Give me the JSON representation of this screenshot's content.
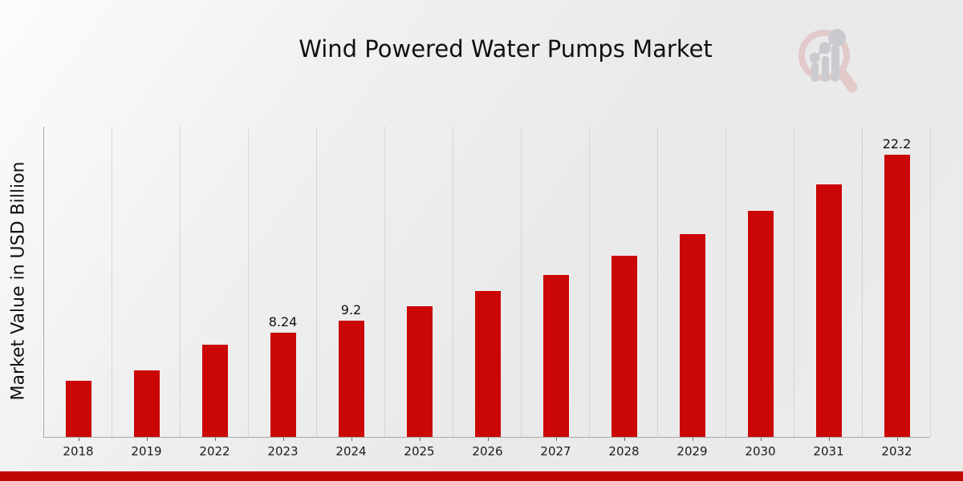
{
  "title": "Wind Powered Water Pumps Market",
  "y_axis_label": "Market Value in USD Billion",
  "watermark_icon": "magnifier-bar-chart-logo",
  "colors": {
    "bar": "#cb0606",
    "bottom_strip": "#bf0404",
    "gridline": "#bdbdbd",
    "axis": "#a9a9a9",
    "watermark_ring": "#e3c7c7",
    "watermark_gray": "#c6c8cc"
  },
  "chart_data": {
    "type": "bar",
    "title": "Wind Powered Water Pumps Market",
    "xlabel": "",
    "ylabel": "Market Value in USD Billion",
    "categories": [
      "2018",
      "2019",
      "2022",
      "2023",
      "2024",
      "2025",
      "2026",
      "2027",
      "2028",
      "2029",
      "2030",
      "2031",
      "2032"
    ],
    "values": [
      4.44,
      5.26,
      7.3,
      8.24,
      9.2,
      10.3,
      11.5,
      12.8,
      14.3,
      16.0,
      17.8,
      19.9,
      22.2
    ],
    "bar_labels": {
      "2023": "8.24",
      "2024": "9.2",
      "2032": "22.2"
    },
    "ylim": [
      0,
      24.42
    ],
    "grid": "vertical-dotted",
    "legend": "none",
    "bar_color": "#cb0606"
  }
}
